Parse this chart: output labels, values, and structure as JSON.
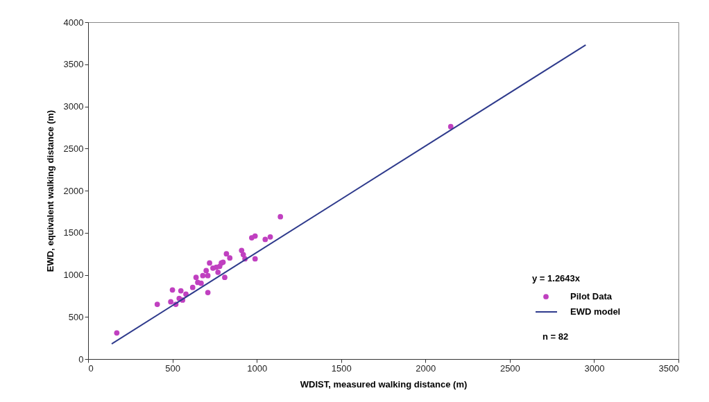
{
  "chart_data": {
    "type": "scatter",
    "xlabel": "WDIST, measured walking distance (m)",
    "ylabel": "EWD, equivalent walking distance (m)",
    "xlim": [
      0,
      3500
    ],
    "xticks": [
      0,
      500,
      1000,
      1500,
      2000,
      2500,
      3000,
      3500
    ],
    "ylim": [
      0,
      4000
    ],
    "yticks": [
      0,
      500,
      1000,
      1500,
      2000,
      2500,
      3000,
      3500,
      4000
    ],
    "grid": false,
    "legend": "bottom right",
    "marker": "circle",
    "series": [
      {
        "name": "Pilot Data",
        "color": "#c040c0",
        "x": [
          170,
          410,
          490,
          500,
          520,
          550,
          540,
          560,
          580,
          620,
          640,
          650,
          670,
          680,
          700,
          710,
          710,
          720,
          740,
          760,
          770,
          780,
          790,
          800,
          810,
          820,
          840,
          910,
          920,
          930,
          990,
          970,
          990,
          1050,
          1080,
          1140,
          2150
        ],
        "values": [
          310,
          650,
          680,
          820,
          650,
          810,
          720,
          700,
          770,
          850,
          970,
          910,
          900,
          990,
          1050,
          990,
          790,
          1140,
          1080,
          1090,
          1030,
          1100,
          1140,
          1150,
          970,
          1250,
          1200,
          1290,
          1240,
          1190,
          1190,
          1440,
          1460,
          1420,
          1450,
          1690,
          2760
        ]
      },
      {
        "name": "EWD model",
        "type": "line",
        "color": "#2e3a8c",
        "marker": "none",
        "x": [
          140,
          2950
        ],
        "values": [
          180,
          3730
        ]
      }
    ],
    "annotations": [
      "y = 1.2643x",
      "n = 82"
    ]
  }
}
